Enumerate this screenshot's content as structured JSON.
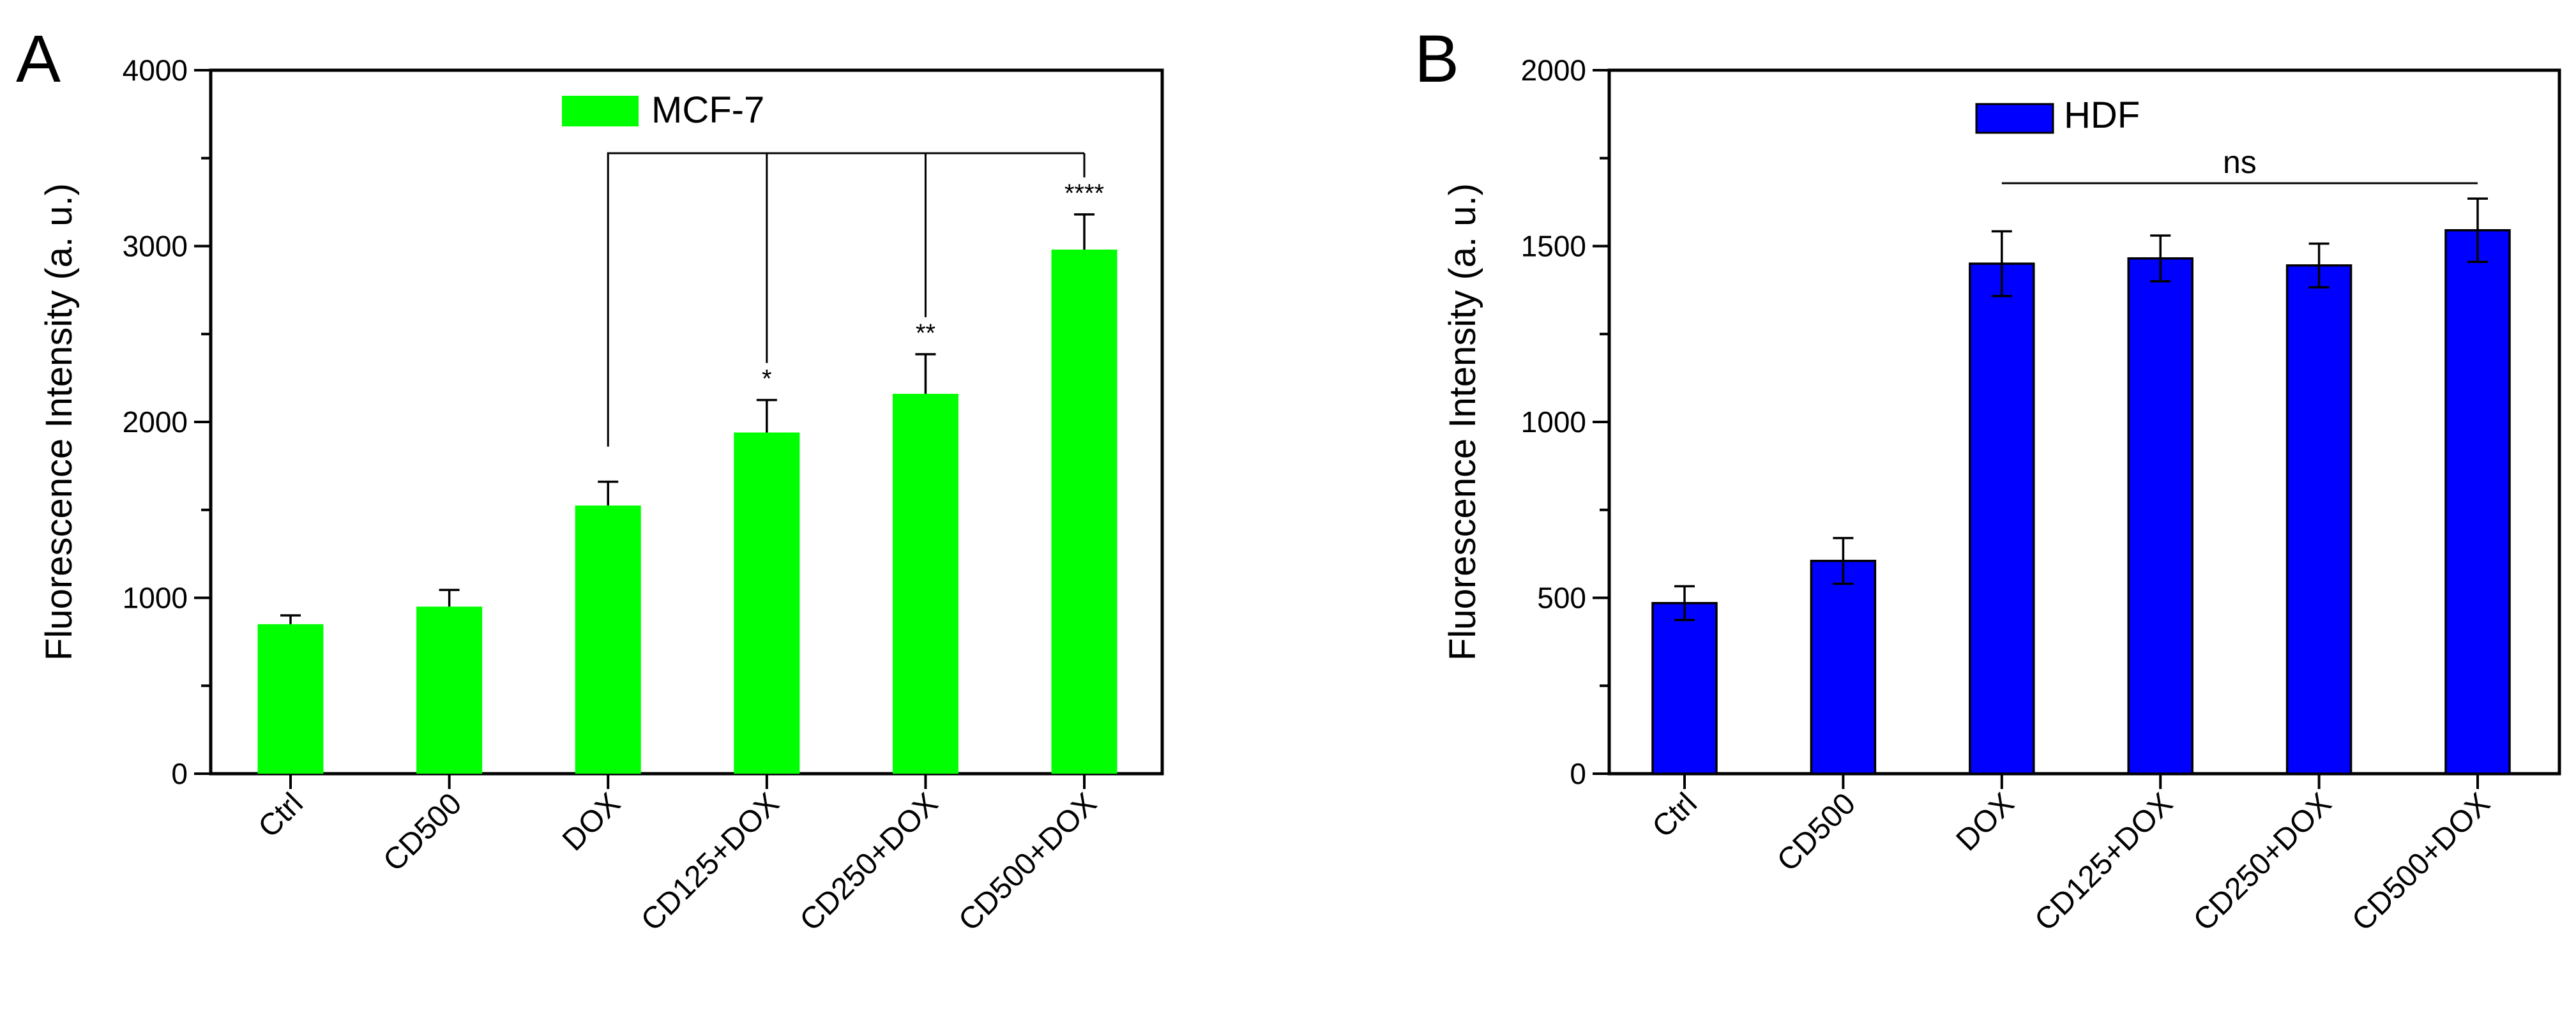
{
  "chart_data": [
    {
      "type": "bar",
      "panel_label": "A",
      "title": "",
      "xlabel": "",
      "ylabel": "Fluorescence Intensity (a. u.)",
      "ylim": [
        0,
        4000
      ],
      "yticks": [
        0,
        1000,
        2000,
        3000,
        4000
      ],
      "yminor_step": 500,
      "categories": [
        "Ctrl",
        "CD500",
        "DOX",
        "CD125+DOX",
        "CD250+DOX",
        "CD500+DOX"
      ],
      "series": [
        {
          "name": "MCF-7",
          "color": "#00ff00",
          "values": [
            850,
            950,
            1525,
            1940,
            2160,
            2980
          ],
          "errors": [
            50,
            95,
            135,
            185,
            225,
            200
          ],
          "error_style": "upper"
        }
      ],
      "legend_position": "top-center",
      "significance": {
        "reference": "DOX",
        "marks": [
          {
            "category": "CD125+DOX",
            "label": "*"
          },
          {
            "category": "CD250+DOX",
            "label": "**"
          },
          {
            "category": "CD500+DOX",
            "label": "****"
          }
        ]
      }
    },
    {
      "type": "bar",
      "panel_label": "B",
      "title": "",
      "xlabel": "",
      "ylabel": "Fluorescence Intensity (a. u.)",
      "ylim": [
        0,
        2000
      ],
      "yticks": [
        0,
        500,
        1000,
        1500,
        2000
      ],
      "yminor_step": 250,
      "categories": [
        "Ctrl",
        "CD500",
        "DOX",
        "CD125+DOX",
        "CD250+DOX",
        "CD500+DOX"
      ],
      "series": [
        {
          "name": "HDF",
          "color": "#0000ff",
          "values": [
            485,
            605,
            1450,
            1465,
            1445,
            1545
          ],
          "errors": [
            48,
            65,
            92,
            65,
            62,
            90
          ],
          "error_style": "both"
        }
      ],
      "legend_position": "top-center",
      "significance": {
        "from": "DOX",
        "to": "CD500+DOX",
        "label": "ns"
      }
    }
  ]
}
